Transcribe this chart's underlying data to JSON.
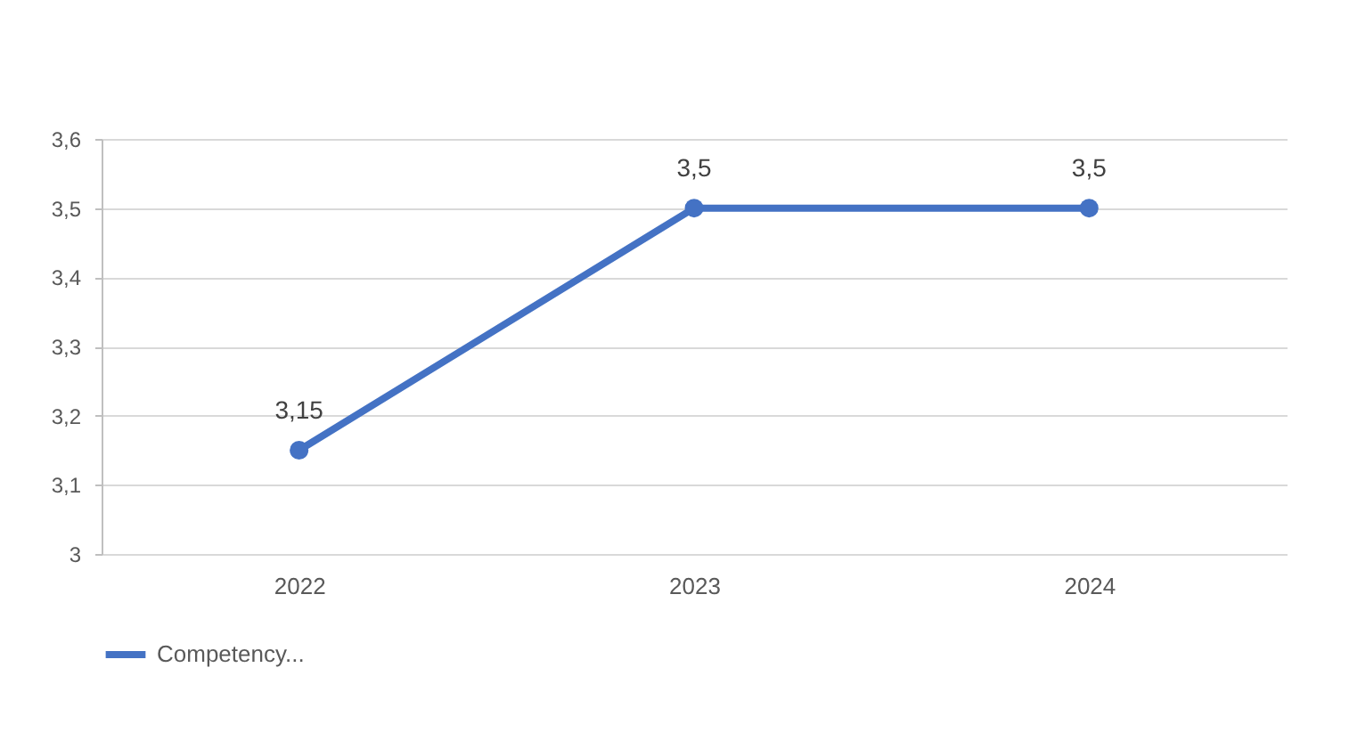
{
  "chart_data": {
    "type": "line",
    "categories": [
      "2022",
      "2023",
      "2024"
    ],
    "series": [
      {
        "name": "Competency...",
        "color": "#4472c4",
        "values": [
          3.15,
          3.5,
          3.5
        ],
        "value_labels": [
          "3,15",
          "3,5",
          "3,5"
        ]
      }
    ],
    "ylim": [
      3,
      3.6
    ],
    "yticks": [
      {
        "value": 3,
        "label": "3"
      },
      {
        "value": 3.1,
        "label": "3,1"
      },
      {
        "value": 3.2,
        "label": "3,2"
      },
      {
        "value": 3.3,
        "label": "3,3"
      },
      {
        "value": 3.4,
        "label": "3,4"
      },
      {
        "value": 3.5,
        "label": "3,5"
      },
      {
        "value": 3.6,
        "label": "3,6"
      }
    ],
    "grid": "y",
    "legend": "bottom",
    "marker": "circle",
    "line_style": "solid"
  }
}
